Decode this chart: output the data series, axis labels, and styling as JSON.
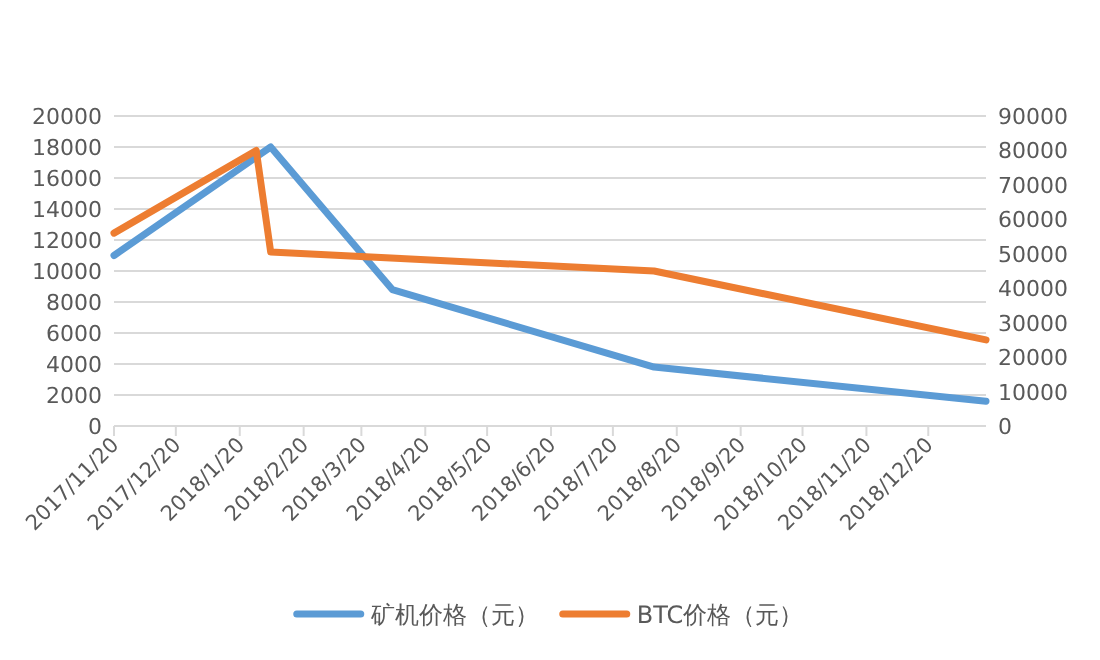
{
  "chart_data": {
    "type": "line",
    "x": [
      "2017-11-20",
      "2018-02-04",
      "2018-04-04",
      "2018-08-09",
      "2019-01-17"
    ],
    "series": [
      {
        "name": "矿机价格（元）",
        "color": "#5b9bd5",
        "values": [
          11000,
          18000,
          8800,
          3800,
          1600
        ]
      },
      {
        "name": "BTC价格（元）",
        "color": "#ed7d31",
        "axis": "y2",
        "x": [
          "2017-11-20",
          "2018-01-28",
          "2018-02-04",
          "2018-08-09",
          "2019-01-17"
        ],
        "values": [
          56000,
          80000,
          50500,
          45000,
          25000
        ]
      }
    ],
    "xlim": [
      "2017-11-20",
      "2019-01-17"
    ],
    "xticks": [
      {
        "value": "2017-11-20",
        "label": "2017/11/20"
      },
      {
        "value": "2017-12-20",
        "label": "2017/12/20"
      },
      {
        "value": "2018-01-20",
        "label": "2018/1/20"
      },
      {
        "value": "2018-02-20",
        "label": "2018/2/20"
      },
      {
        "value": "2018-03-20",
        "label": "2018/3/20"
      },
      {
        "value": "2018-04-20",
        "label": "2018/4/20"
      },
      {
        "value": "2018-05-20",
        "label": "2018/5/20"
      },
      {
        "value": "2018-06-20",
        "label": "2018/6/20"
      },
      {
        "value": "2018-07-20",
        "label": "2018/7/20"
      },
      {
        "value": "2018-08-20",
        "label": "2018/8/20"
      },
      {
        "value": "2018-09-20",
        "label": "2018/9/20"
      },
      {
        "value": "2018-10-20",
        "label": "2018/10/20"
      },
      {
        "value": "2018-11-20",
        "label": "2018/11/20"
      },
      {
        "value": "2018-12-20",
        "label": "2018/12/20"
      }
    ],
    "ylim": [
      0,
      20000
    ],
    "yticks": [
      0,
      2000,
      4000,
      6000,
      8000,
      10000,
      12000,
      14000,
      16000,
      18000,
      20000
    ],
    "y2lim": [
      0,
      90000
    ],
    "y2ticks": [
      0,
      10000,
      20000,
      30000,
      40000,
      50000,
      60000,
      70000,
      80000,
      90000
    ],
    "grid": "y",
    "legend": "bottom",
    "marker": "none",
    "line_style": "solid"
  }
}
